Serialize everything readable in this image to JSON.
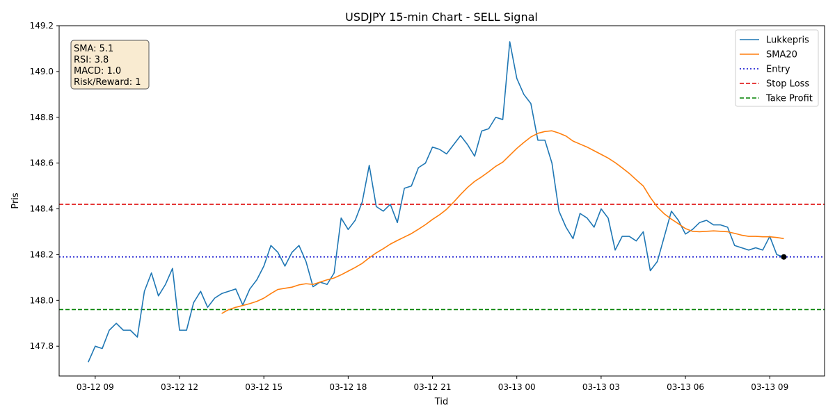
{
  "chart_data": {
    "type": "line",
    "title": "USDJPY 15-min Chart - SELL Signal",
    "xlabel": "Tid",
    "ylabel": "Pris",
    "xlim": [
      "2024-03-12 07:43",
      "2024-03-13 10:57"
    ],
    "ylim": [
      147.67,
      149.2
    ],
    "grid": false,
    "legend_position": "top-right",
    "x_tick_labels": [
      {
        "value": "2024-03-12 09:00",
        "label": "03-12 09"
      },
      {
        "value": "2024-03-12 12:00",
        "label": "03-12 12"
      },
      {
        "value": "2024-03-12 15:00",
        "label": "03-12 15"
      },
      {
        "value": "2024-03-12 18:00",
        "label": "03-12 18"
      },
      {
        "value": "2024-03-12 21:00",
        "label": "03-12 21"
      },
      {
        "value": "2024-03-13 00:00",
        "label": "03-13 00"
      },
      {
        "value": "2024-03-13 03:00",
        "label": "03-13 03"
      },
      {
        "value": "2024-03-13 06:00",
        "label": "03-13 06"
      },
      {
        "value": "2024-03-13 09:00",
        "label": "03-13 09"
      }
    ],
    "y_ticks": [
      147.8,
      148.0,
      148.2,
      148.4,
      148.6,
      148.8,
      149.0,
      149.2
    ],
    "y_tick_labels": [
      "147.8",
      "148.0",
      "148.2",
      "148.4",
      "148.6",
      "148.8",
      "149.0",
      "149.2"
    ],
    "series": [
      {
        "name": "Lukkepris",
        "color": "#1f77b4",
        "style": "solid",
        "x_start": "2024-03-12 08:45",
        "interval_minutes": 15,
        "values": [
          147.73,
          147.8,
          147.79,
          147.87,
          147.9,
          147.87,
          147.87,
          147.84,
          148.04,
          148.12,
          148.02,
          148.07,
          148.14,
          147.87,
          147.87,
          147.99,
          148.04,
          147.97,
          148.01,
          148.03,
          148.04,
          148.05,
          147.98,
          148.05,
          148.09,
          148.15,
          148.24,
          148.21,
          148.15,
          148.21,
          148.24,
          148.17,
          148.06,
          148.08,
          148.07,
          148.12,
          148.36,
          148.31,
          148.35,
          148.43,
          148.59,
          148.41,
          148.39,
          148.42,
          148.34,
          148.49,
          148.5,
          148.58,
          148.6,
          148.67,
          148.66,
          148.64,
          148.68,
          148.72,
          148.68,
          148.63,
          148.74,
          148.75,
          148.8,
          148.79,
          149.13,
          148.97,
          148.9,
          148.86,
          148.7,
          148.7,
          148.6,
          148.39,
          148.32,
          148.27,
          148.38,
          148.36,
          148.32,
          148.4,
          148.36,
          148.22,
          148.28,
          148.28,
          148.26,
          148.3,
          148.13,
          148.17,
          148.28,
          148.39,
          148.35,
          148.29,
          148.31,
          148.34,
          148.35,
          148.33,
          148.33,
          148.32,
          148.24,
          148.23,
          148.22,
          148.23,
          148.22,
          148.28,
          148.2,
          148.19
        ]
      },
      {
        "name": "SMA20",
        "color": "#ff7f0e",
        "style": "solid",
        "x_start": "2024-03-12 13:30",
        "interval_minutes": 15,
        "values": [
          147.943,
          147.96,
          147.97,
          147.978,
          147.986,
          147.996,
          148.01,
          148.03,
          148.048,
          148.053,
          148.058,
          148.068,
          148.073,
          148.07,
          148.08,
          148.09,
          148.098,
          148.112,
          148.128,
          148.144,
          148.162,
          148.186,
          148.208,
          148.226,
          148.246,
          148.262,
          148.277,
          148.292,
          148.311,
          148.331,
          148.354,
          148.374,
          148.398,
          148.429,
          148.463,
          148.494,
          148.52,
          148.54,
          148.562,
          148.586,
          148.604,
          148.634,
          148.664,
          148.69,
          148.714,
          148.73,
          148.738,
          148.741,
          148.731,
          148.718,
          148.696,
          148.683,
          148.67,
          148.654,
          148.638,
          148.622,
          148.602,
          148.579,
          148.555,
          148.527,
          148.5,
          148.45,
          148.408,
          148.378,
          148.355,
          148.335,
          148.314,
          148.302,
          148.3,
          148.302,
          148.304,
          148.302,
          148.3,
          148.293,
          148.285,
          148.28,
          148.28,
          148.278,
          148.278,
          148.275,
          148.27
        ]
      }
    ],
    "hlines": [
      {
        "name": "Entry",
        "value": 148.19,
        "color": "#0000cc",
        "style": "dotted"
      },
      {
        "name": "Stop Loss",
        "value": 148.42,
        "color": "#dd0000",
        "style": "dashed"
      },
      {
        "name": "Take Profit",
        "value": 147.96,
        "color": "#008000",
        "style": "dashed"
      }
    ],
    "marker": {
      "x": "2024-03-13 09:30",
      "y": 148.19,
      "color": "#000000"
    },
    "annotation_lines": [
      "SMA: 5.1",
      "RSI: 3.8",
      "MACD: 1.0",
      "Risk/Reward: 1"
    ],
    "legend": [
      "Lukkepris",
      "SMA20",
      "Entry",
      "Stop Loss",
      "Take Profit"
    ]
  }
}
